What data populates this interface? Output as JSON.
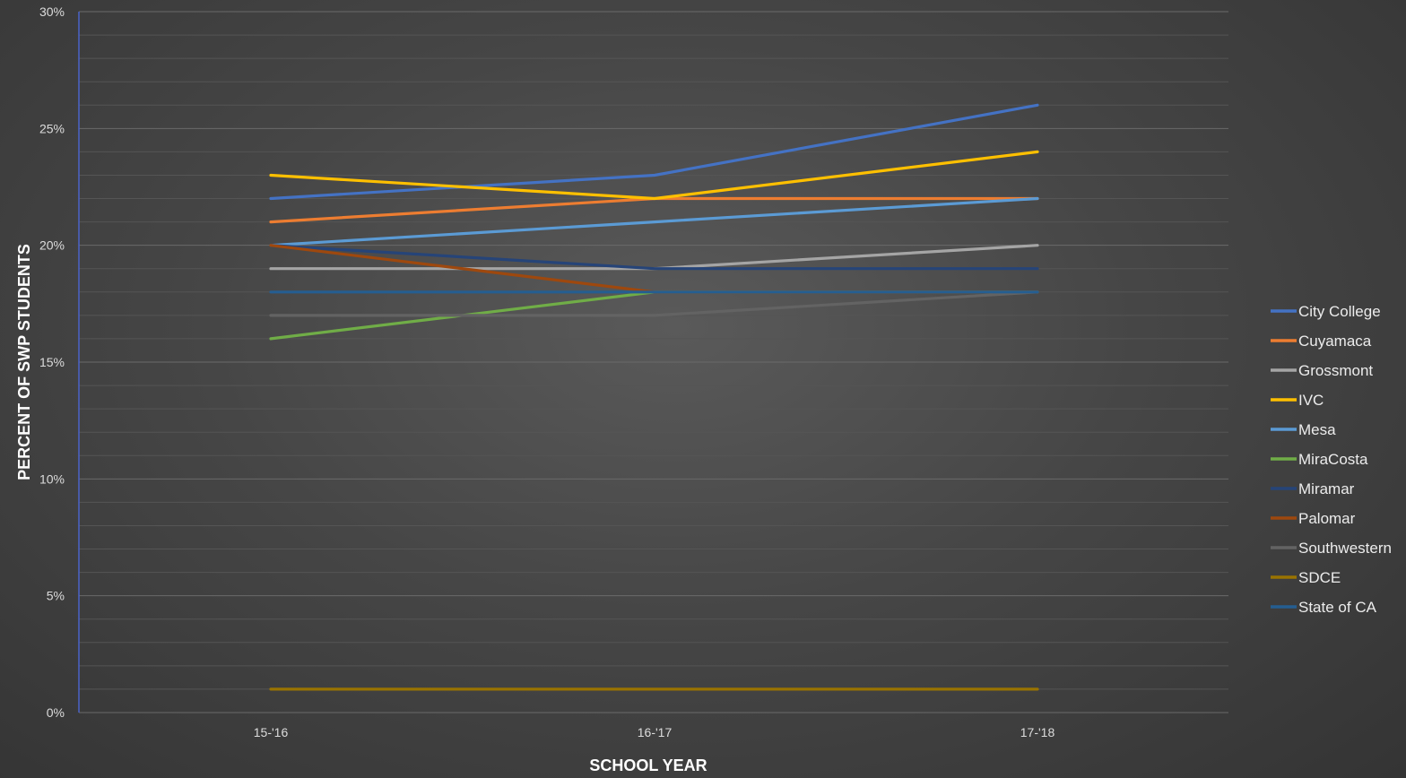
{
  "chart_data": {
    "type": "line",
    "title": "",
    "xlabel": "SCHOOL YEAR",
    "ylabel": "PERCENT OF SWP STUDENTS",
    "categories": [
      "15-'16",
      "16-'17",
      "17-'18"
    ],
    "ylim": [
      0,
      30
    ],
    "yticks": [
      0,
      5,
      10,
      15,
      20,
      25,
      30
    ],
    "ytick_labels": [
      "0%",
      "5%",
      "10%",
      "15%",
      "20%",
      "25%",
      "30%"
    ],
    "grid": true,
    "legend_position": "right",
    "series": [
      {
        "name": "City College",
        "color": "#4472C4",
        "values": [
          22,
          23,
          26
        ]
      },
      {
        "name": "Cuyamaca",
        "color": "#ED7D31",
        "values": [
          21,
          22,
          22
        ]
      },
      {
        "name": "Grossmont",
        "color": "#A5A5A5",
        "values": [
          19,
          19,
          20
        ]
      },
      {
        "name": "IVC",
        "color": "#FFC000",
        "values": [
          23,
          22,
          24
        ]
      },
      {
        "name": "Mesa",
        "color": "#5B9BD5",
        "values": [
          20,
          21,
          22
        ]
      },
      {
        "name": "MiraCosta",
        "color": "#70AD47",
        "values": [
          16,
          18,
          18
        ]
      },
      {
        "name": "Miramar",
        "color": "#264478",
        "values": [
          20,
          19,
          19
        ]
      },
      {
        "name": "Palomar",
        "color": "#9E480E",
        "values": [
          20,
          18,
          18
        ]
      },
      {
        "name": "Southwestern",
        "color": "#636363",
        "values": [
          17,
          17,
          18
        ]
      },
      {
        "name": "SDCE",
        "color": "#997300",
        "values": [
          1,
          1,
          1
        ]
      },
      {
        "name": "State of CA",
        "color": "#255E91",
        "values": [
          18,
          18,
          18
        ]
      }
    ]
  }
}
